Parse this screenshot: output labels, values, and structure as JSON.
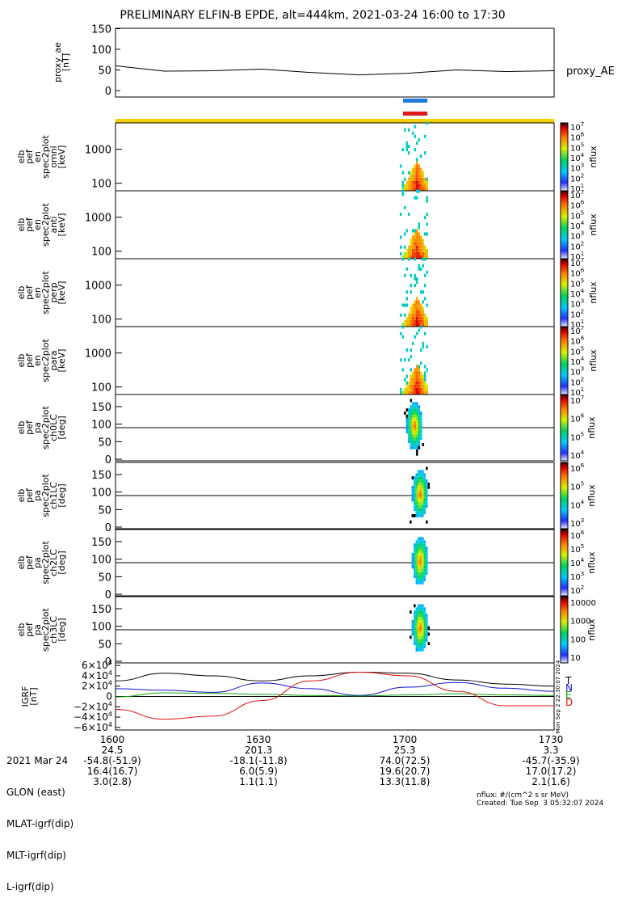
{
  "title": "PRELIMINARY ELFIN-B EPDE, alt=444km, 2021-03-24 16:00 to 17:30",
  "colors": {
    "black": "#000000",
    "blue_bar": "#1e7be0",
    "red_bar": "#e01818",
    "yellow_bar": "#f5d000",
    "T": "#000000",
    "N": "#1010d0",
    "E": "#10a010",
    "D": "#e01010"
  },
  "proxy_panel": {
    "ylabel_lines": [
      "proxy_ae",
      "[nT]"
    ],
    "yticks": [
      "150",
      "100",
      "50",
      "0"
    ],
    "legend": "proxy_AE"
  },
  "spec_panels": [
    {
      "ylabel_lines": [
        "elb",
        "pef",
        "en",
        "spec2plot",
        "omni",
        "[keV]"
      ],
      "yticks": [
        "1000",
        "100"
      ],
      "cbar_ticks": [
        "10^7",
        "10^6",
        "10^5",
        "10^4",
        "10^3",
        "10^2",
        "10^1"
      ],
      "cbar_label": "nflux",
      "cbar_min": "10^1"
    },
    {
      "ylabel_lines": [
        "elb",
        "pef",
        "en",
        "spec2plot",
        "anti",
        "[keV]"
      ],
      "yticks": [
        "1000",
        "100"
      ],
      "cbar_ticks": [
        "10^7",
        "10^6",
        "10^5",
        "10^4",
        "10^3",
        "10^2",
        "10^1"
      ],
      "cbar_label": "nflux",
      "cbar_min": "10^1"
    },
    {
      "ylabel_lines": [
        "elb",
        "pef",
        "en",
        "spec2plot",
        "perp",
        "[keV]"
      ],
      "yticks": [
        "1000",
        "100"
      ],
      "cbar_ticks": [
        "10^7",
        "10^6",
        "10^5",
        "10^4",
        "10^3",
        "10^2",
        "10^1"
      ],
      "cbar_label": "nflux",
      "cbar_min": "10^1"
    },
    {
      "ylabel_lines": [
        "elb",
        "pef",
        "en",
        "spec2plot",
        "para",
        "[keV]"
      ],
      "yticks": [
        "1000",
        "100"
      ],
      "cbar_ticks": [
        "10^7",
        "10^6",
        "10^5",
        "10^4",
        "10^3",
        "10^2",
        "10^1"
      ],
      "cbar_label": "nflux",
      "cbar_min": "10^1"
    }
  ],
  "pa_panels": [
    {
      "ylabel_lines": [
        "elb",
        "pef",
        "pa",
        "spec2plot",
        "ch0LC",
        "[deg]"
      ],
      "yticks": [
        "150",
        "100",
        "50",
        "0"
      ],
      "cbar_ticks": [
        "10^7",
        "10^6",
        "10^5",
        "10^4"
      ],
      "cbar_label": "nflux"
    },
    {
      "ylabel_lines": [
        "elb",
        "pef",
        "pa",
        "spec2plot",
        "ch1LC",
        "[deg]"
      ],
      "yticks": [
        "150",
        "100",
        "50",
        "0"
      ],
      "cbar_ticks": [
        "10^6",
        "10^5",
        "10^4",
        "10^3"
      ],
      "cbar_label": "nflux"
    },
    {
      "ylabel_lines": [
        "elb",
        "pef",
        "pa",
        "spec2plot",
        "ch2LC",
        "[deg]"
      ],
      "yticks": [
        "150",
        "100",
        "50",
        "0"
      ],
      "cbar_ticks": [
        "10^6",
        "10^5",
        "10^4",
        "10^3",
        "10^2"
      ],
      "cbar_label": "nflux"
    },
    {
      "ylabel_lines": [
        "elb",
        "pef",
        "pa",
        "spec2plot",
        "ch3LC",
        "[deg]"
      ],
      "yticks": [
        "150",
        "100",
        "50",
        "0"
      ],
      "cbar_ticks": [
        "10000",
        "1000",
        "100",
        "10"
      ],
      "cbar_label": "nflux"
    }
  ],
  "igrf_panel": {
    "ylabel_lines": [
      "IGRF",
      "[nT]"
    ],
    "yticks": [
      "6×10^4",
      "4×10^4",
      "2×10^4",
      "0",
      "−2×10^4",
      "−4×10^4",
      "−6×10^4"
    ],
    "legend": [
      "T",
      "N",
      "E",
      "D"
    ],
    "side_text": "Mon Sep  2 22:30:07 2024"
  },
  "footer": {
    "rows": [
      {
        "label": "2021 Mar 24",
        "values": [
          "1600",
          "1630",
          "1700",
          "1730"
        ]
      },
      {
        "label": "GLON (east)",
        "values": [
          "24.5",
          "201.3",
          "25.3",
          "3.3"
        ]
      },
      {
        "label": "MLAT-igrf(dip)",
        "values": [
          "-54.8(-51.9)",
          "-18.1(-11.8)",
          "74.0(72.5)",
          "-45.7(-35.9)"
        ]
      },
      {
        "label": "MLT-igrf(dip)",
        "values": [
          "16.4(16.7)",
          "6.0(5.9)",
          "19.6(20.7)",
          "17.0(17.2)"
        ]
      },
      {
        "label": "L-igrf(dip)",
        "values": [
          "3.0(2.8)",
          "1.1(1.1)",
          "13.3(11.8)",
          "2.1(1.6)"
        ]
      }
    ],
    "nflux_note": "nflux: #/(cm^2 s sr MeV)",
    "created": "Created: Tue Sep  3 05:32:07 2024"
  },
  "chart_data": [
    {
      "type": "line",
      "title": "PRELIMINARY ELFIN-B EPDE, alt=444km, 2021-03-24 16:00 to 17:30",
      "xlabel": "",
      "ylabel": "proxy_ae [nT]",
      "x": [
        "16:00",
        "16:10",
        "16:20",
        "16:30",
        "16:40",
        "16:50",
        "17:00",
        "17:10",
        "17:20",
        "17:30"
      ],
      "series": [
        {
          "name": "proxy_AE",
          "values": [
            60,
            47,
            48,
            52,
            44,
            38,
            42,
            50,
            46,
            48
          ]
        }
      ],
      "ylim": [
        0,
        150
      ]
    },
    {
      "type": "heatmap",
      "panels": [
        "omni",
        "anti",
        "perp",
        "para"
      ],
      "ylabel": "[keV]",
      "y_scale": "log",
      "ylim": [
        60,
        6000
      ],
      "active_time": [
        "16:59",
        "17:04"
      ],
      "colorbar": {
        "label": "nflux",
        "range": [
          "10^1",
          "10^7"
        ]
      }
    },
    {
      "type": "heatmap",
      "panels": [
        "ch0LC",
        "ch1LC",
        "ch2LC",
        "ch3LC"
      ],
      "ylabel": "[deg]",
      "ylim": [
        0,
        180
      ],
      "active_time": [
        "17:00",
        "17:04"
      ]
    },
    {
      "type": "line",
      "ylabel": "IGRF [nT]",
      "ylim": [
        -60000,
        60000
      ],
      "x": [
        "16:00",
        "16:10",
        "16:20",
        "16:30",
        "16:40",
        "16:50",
        "17:00",
        "17:10",
        "17:20",
        "17:30"
      ],
      "series": [
        {
          "name": "T",
          "values": [
            30000,
            45000,
            40000,
            30000,
            40000,
            47000,
            45000,
            32000,
            24000,
            20000
          ]
        },
        {
          "name": "N",
          "values": [
            15000,
            12000,
            8000,
            26000,
            15000,
            2000,
            18000,
            27000,
            16000,
            10000
          ]
        },
        {
          "name": "E",
          "values": [
            -1000,
            7000,
            6000,
            4000,
            2000,
            1000,
            3000,
            5000,
            3000,
            2000
          ]
        },
        {
          "name": "D",
          "values": [
            -25000,
            -44000,
            -38000,
            -8000,
            30000,
            47000,
            40000,
            10000,
            -18000,
            -18000
          ]
        }
      ]
    }
  ]
}
